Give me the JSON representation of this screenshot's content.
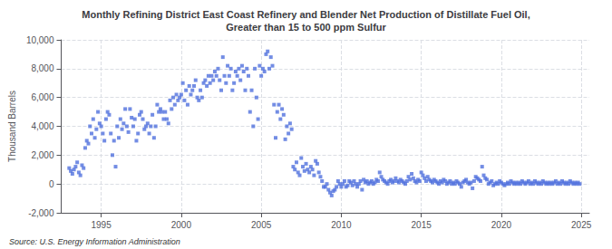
{
  "chart_data": {
    "type": "scatter",
    "title": "Monthly Refining District East Coast Refinery and Blender Net Production of Distillate Fuel Oil,\nGreater than 15 to 500 ppm Sulfur",
    "ylabel": "Thousand Barrels",
    "annotations": [
      "Source: U.S. Energy Information Administration"
    ],
    "marker": "square",
    "grid": true,
    "xlim": [
      1992.5,
      2025.5
    ],
    "ylim": [
      -2000,
      10000
    ],
    "xticks": [
      1995,
      2000,
      2005,
      2010,
      2015,
      2020,
      2025
    ],
    "yticks": [
      {
        "value": -2000,
        "label": "-2,000"
      },
      0,
      {
        "value": 2000,
        "label": "2,000"
      },
      {
        "value": 4000,
        "label": "4,000"
      },
      {
        "value": 6000,
        "label": "6,000"
      },
      {
        "value": 8000,
        "label": "8,000"
      },
      {
        "value": 10000,
        "label": "10,000"
      }
    ],
    "x": [
      1993.0,
      1993.1,
      1993.2,
      1993.3,
      1993.4,
      1993.5,
      1993.6,
      1993.7,
      1993.8,
      1993.9,
      1994.0,
      1994.1,
      1994.2,
      1994.3,
      1994.4,
      1994.5,
      1994.6,
      1994.7,
      1994.8,
      1994.9,
      1995.0,
      1995.1,
      1995.2,
      1995.3,
      1995.4,
      1995.5,
      1995.6,
      1995.7,
      1995.8,
      1995.9,
      1996.0,
      1996.1,
      1996.2,
      1996.3,
      1996.4,
      1996.5,
      1996.6,
      1996.7,
      1996.8,
      1996.9,
      1997.0,
      1997.1,
      1997.2,
      1997.3,
      1997.4,
      1997.5,
      1997.6,
      1997.7,
      1997.8,
      1997.9,
      1998.0,
      1998.1,
      1998.2,
      1998.3,
      1998.4,
      1998.5,
      1998.6,
      1998.7,
      1998.8,
      1998.9,
      1999.0,
      1999.1,
      1999.2,
      1999.3,
      1999.4,
      1999.5,
      1999.6,
      1999.7,
      1999.8,
      1999.9,
      2000.0,
      2000.1,
      2000.2,
      2000.3,
      2000.4,
      2000.5,
      2000.6,
      2000.7,
      2000.8,
      2000.9,
      2001.0,
      2001.1,
      2001.2,
      2001.3,
      2001.4,
      2001.5,
      2001.6,
      2001.7,
      2001.8,
      2001.9,
      2002.0,
      2002.1,
      2002.2,
      2002.3,
      2002.4,
      2002.5,
      2002.6,
      2002.7,
      2002.8,
      2002.9,
      2003.0,
      2003.1,
      2003.2,
      2003.3,
      2003.4,
      2003.5,
      2003.6,
      2003.7,
      2003.8,
      2003.9,
      2004.0,
      2004.1,
      2004.2,
      2004.3,
      2004.4,
      2004.5,
      2004.6,
      2004.7,
      2004.8,
      2004.9,
      2005.0,
      2005.1,
      2005.2,
      2005.3,
      2005.4,
      2005.5,
      2005.6,
      2005.7,
      2005.8,
      2005.9,
      2006.0,
      2006.1,
      2006.2,
      2006.3,
      2006.4,
      2006.5,
      2006.6,
      2006.7,
      2006.8,
      2006.9,
      2007.0,
      2007.1,
      2007.2,
      2007.3,
      2007.4,
      2007.5,
      2007.6,
      2007.7,
      2007.8,
      2007.9,
      2008.0,
      2008.1,
      2008.2,
      2008.3,
      2008.4,
      2008.5,
      2008.6,
      2008.7,
      2008.8,
      2008.9,
      2009.0,
      2009.1,
      2009.2,
      2009.3,
      2009.4,
      2009.5,
      2009.6,
      2009.7,
      2009.8,
      2009.9,
      2010.0,
      2010.1,
      2010.2,
      2010.3,
      2010.4,
      2010.5,
      2010.6,
      2010.7,
      2010.8,
      2010.9,
      2011.0,
      2011.1,
      2011.2,
      2011.3,
      2011.4,
      2011.5,
      2011.6,
      2011.7,
      2011.8,
      2011.9,
      2012.0,
      2012.1,
      2012.2,
      2012.3,
      2012.4,
      2012.5,
      2012.6,
      2012.7,
      2012.8,
      2012.9,
      2013.0,
      2013.1,
      2013.2,
      2013.3,
      2013.4,
      2013.5,
      2013.6,
      2013.7,
      2013.8,
      2013.9,
      2014.0,
      2014.1,
      2014.2,
      2014.3,
      2014.4,
      2014.5,
      2014.6,
      2014.7,
      2014.8,
      2014.9,
      2015.0,
      2015.1,
      2015.2,
      2015.3,
      2015.4,
      2015.5,
      2015.6,
      2015.7,
      2015.8,
      2015.9,
      2016.0,
      2016.1,
      2016.2,
      2016.3,
      2016.4,
      2016.5,
      2016.6,
      2016.7,
      2016.8,
      2016.9,
      2017.0,
      2017.1,
      2017.2,
      2017.3,
      2017.4,
      2017.5,
      2017.6,
      2017.7,
      2017.8,
      2017.9,
      2018.0,
      2018.1,
      2018.2,
      2018.3,
      2018.4,
      2018.5,
      2018.6,
      2018.7,
      2018.8,
      2018.9,
      2019.0,
      2019.1,
      2019.2,
      2019.3,
      2019.4,
      2019.5,
      2019.6,
      2019.7,
      2019.8,
      2019.9,
      2020.0,
      2020.1,
      2020.2,
      2020.3,
      2020.4,
      2020.5,
      2020.6,
      2020.7,
      2020.8,
      2020.9,
      2021.0,
      2021.1,
      2021.2,
      2021.3,
      2021.4,
      2021.5,
      2021.6,
      2021.7,
      2021.8,
      2021.9,
      2022.0,
      2022.1,
      2022.2,
      2022.3,
      2022.4,
      2022.5,
      2022.6,
      2022.7,
      2022.8,
      2022.9,
      2023.0,
      2023.1,
      2023.2,
      2023.3,
      2023.4,
      2023.5,
      2023.6,
      2023.7,
      2023.8,
      2023.9,
      2024.0,
      2024.1,
      2024.2,
      2024.3,
      2024.4,
      2024.5,
      2024.6,
      2024.7,
      2024.8,
      2024.9
    ],
    "values": [
      1100,
      900,
      700,
      1000,
      1200,
      1500,
      800,
      600,
      1300,
      1100,
      2500,
      3000,
      2800,
      4000,
      3500,
      4500,
      3200,
      3800,
      5000,
      4200,
      4000,
      3500,
      3000,
      4500,
      5000,
      4800,
      3500,
      2000,
      3000,
      1200,
      4000,
      3200,
      4500,
      3800,
      4200,
      5200,
      4000,
      3600,
      5200,
      4600,
      4000,
      4500,
      3000,
      3500,
      4800,
      5000,
      4500,
      3800,
      4000,
      4200,
      3500,
      4000,
      4800,
      3200,
      4000,
      5500,
      5000,
      5200,
      5000,
      4500,
      5000,
      4500,
      4200,
      5800,
      5200,
      6000,
      5500,
      6200,
      5800,
      6000,
      6200,
      7000,
      5800,
      6500,
      5500,
      6800,
      6200,
      6500,
      6800,
      7200,
      6000,
      5800,
      6500,
      6000,
      7000,
      7200,
      6800,
      7500,
      7000,
      7500,
      7200,
      7800,
      7500,
      8000,
      7200,
      6500,
      8800,
      7500,
      7000,
      8200,
      7500,
      8000,
      6500,
      7000,
      7800,
      7500,
      8000,
      7200,
      8200,
      7800,
      6500,
      8000,
      7500,
      5000,
      6500,
      4000,
      8000,
      6000,
      4500,
      8200,
      7500,
      8000,
      7800,
      9000,
      9200,
      8000,
      8800,
      8200,
      5500,
      3200,
      5000,
      5500,
      4500,
      5200,
      4800,
      3100,
      4000,
      3500,
      4200,
      3800,
      1200,
      1000,
      1500,
      800,
      600,
      1800,
      1200,
      900,
      1400,
      1000,
      800,
      1200,
      1000,
      600,
      1600,
      1400,
      800,
      500,
      200,
      -200,
      -200,
      0,
      -400,
      -600,
      -800,
      -500,
      -400,
      -200,
      200,
      0,
      -200,
      0,
      200,
      -200,
      -100,
      200,
      100,
      -100,
      200,
      0,
      -200,
      0,
      200,
      -400,
      300,
      100,
      200,
      0,
      100,
      200,
      0,
      100,
      300,
      200,
      800,
      500,
      300,
      200,
      100,
      0,
      200,
      300,
      100,
      200,
      400,
      200,
      100,
      300,
      200,
      100,
      0,
      200,
      500,
      300,
      700,
      400,
      200,
      100,
      300,
      200,
      800,
      600,
      400,
      200,
      500,
      300,
      200,
      100,
      300,
      200,
      100,
      0,
      200,
      100,
      300,
      200,
      0,
      100,
      200,
      0,
      100,
      0,
      200,
      100,
      0,
      -200,
      100,
      200,
      300,
      100,
      0,
      100,
      -300,
      200,
      500,
      400,
      300,
      200,
      1200,
      600,
      400,
      300,
      0,
      100,
      200,
      -100,
      0,
      100,
      0,
      200,
      100,
      0,
      -100,
      0,
      100,
      0,
      200,
      100,
      0,
      100,
      0,
      100,
      0,
      200,
      100,
      0,
      100,
      200,
      0,
      100,
      0,
      200,
      100,
      0,
      100,
      0,
      200,
      100,
      0,
      100,
      0,
      100,
      0,
      100,
      200,
      0,
      100,
      0,
      200,
      100,
      0,
      100,
      0,
      200,
      100,
      0,
      100,
      0,
      100,
      0
    ]
  }
}
